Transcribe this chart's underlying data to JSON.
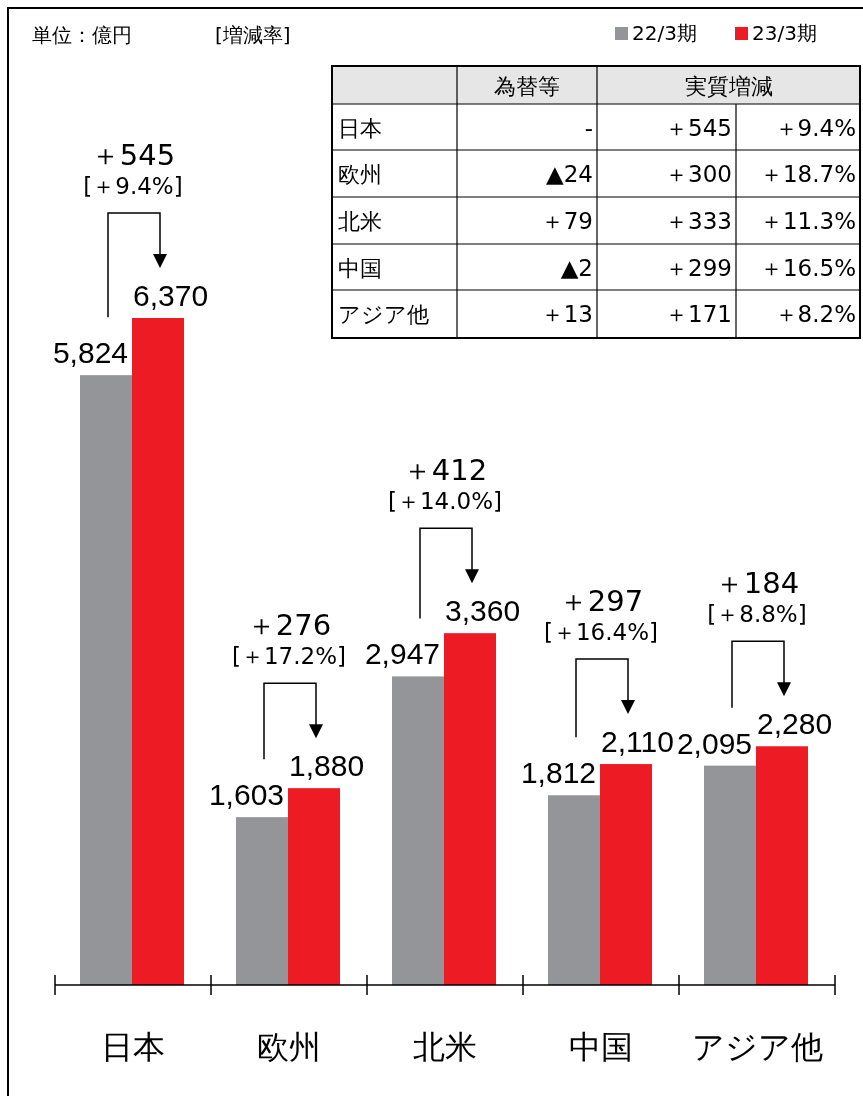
{
  "chart_data": [
    {
      "type": "bar",
      "categories": [
        "日本",
        "欧州",
        "北米",
        "中国",
        "アジア他"
      ],
      "series": [
        {
          "name": "22/3期",
          "color": "#939598",
          "values": [
            5824,
            1603,
            2947,
            1812,
            2095
          ],
          "value_labels": [
            "5,824",
            "1,603",
            "2,947",
            "1,812",
            "2,095"
          ]
        },
        {
          "name": "23/3期",
          "color": "#ed1c24",
          "values": [
            6370,
            1880,
            3360,
            2110,
            2280
          ],
          "value_labels": [
            "6,370",
            "1,880",
            "3,360",
            "2,110",
            "2,280"
          ]
        }
      ],
      "legend": "top right",
      "annotations": [
        "単位：億円",
        "[増減率]",
        "＋545",
        "[＋9.4%]",
        "＋276",
        "[＋17.2%]",
        "＋412",
        "[＋14.0%]",
        "＋297",
        "[＋16.4%]",
        "＋184",
        "[＋8.8%]"
      ]
    },
    {
      "type": "other",
      "categories": [
        "為替等",
        "実質増減",
        null
      ],
      "y_categories": [
        "日本",
        "欧州",
        "北米",
        "中国",
        "アジア他"
      ],
      "cell_labels": [
        [
          "-",
          "＋545",
          "＋9.4%"
        ],
        [
          "▲24",
          "＋300",
          "＋18.7%"
        ],
        [
          "＋79",
          "＋333",
          "＋11.3%"
        ],
        [
          "▲2",
          "＋299",
          "＋16.5%"
        ],
        [
          "＋13",
          "＋171",
          "＋8.2%"
        ]
      ]
    }
  ]
}
